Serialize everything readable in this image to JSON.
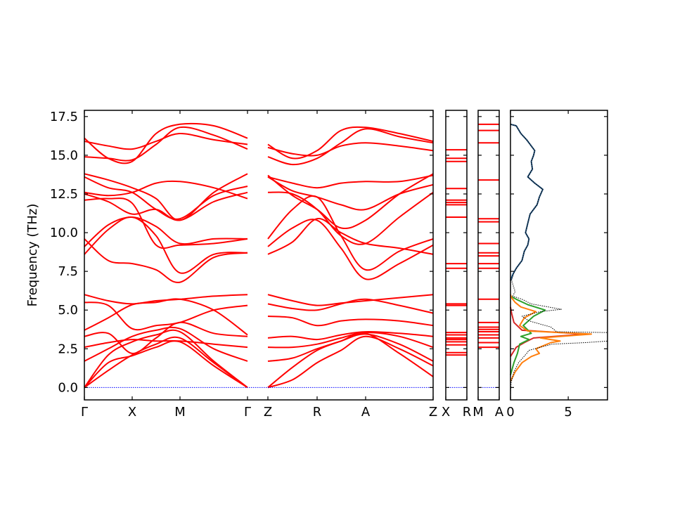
{
  "chart_data": {
    "type": "line",
    "title": "",
    "ylabel": "Frequency (THz)",
    "ylim": [
      -0.8,
      17.9
    ],
    "yticks": [
      "0.0",
      "2.5",
      "5.0",
      "7.5",
      "10.0",
      "12.5",
      "15.0",
      "17.5"
    ],
    "ytick_values": [
      0.0,
      2.5,
      5.0,
      7.5,
      10.0,
      12.5,
      15.0,
      17.5
    ],
    "colors": {
      "bands": "#ff0000",
      "zero_line": "#0000ff",
      "dos_total": "#000000",
      "dos_blue": "#1f4e79",
      "dos_orange": "#ff7f0e",
      "dos_green": "#2ca02c",
      "dos_red": "#d62728"
    },
    "band_path_labels": {
      "main": [
        "Γ",
        "X",
        "M",
        "Γ",
        "Z",
        "R",
        "A",
        "Z"
      ],
      "second": [
        "X",
        "R"
      ],
      "third": [
        "M",
        "A"
      ]
    },
    "segment2_levels": [
      15.35,
      14.8,
      14.6,
      12.85,
      12.1,
      11.95,
      11.8,
      11.0,
      8.0,
      7.7,
      5.4,
      5.3,
      3.55,
      3.4,
      3.2,
      3.1,
      2.95,
      2.75,
      2.25,
      2.1
    ],
    "segment3_levels": [
      17.0,
      16.6,
      15.8,
      13.4,
      10.9,
      10.7,
      9.3,
      8.7,
      8.5,
      8.0,
      7.7,
      5.7,
      4.2,
      3.9,
      3.75,
      3.6,
      3.4,
      3.2,
      2.9,
      2.6
    ],
    "dos": {
      "xticks": [
        "0",
        "5"
      ],
      "xtick_values": [
        0,
        5
      ],
      "xlim": [
        0,
        8.4
      ],
      "total": [
        [
          0.0,
          -0.8
        ],
        [
          0.05,
          0.3
        ],
        [
          0.3,
          1.0
        ],
        [
          0.7,
          1.6
        ],
        [
          1.4,
          2.2
        ],
        [
          1.6,
          2.4
        ],
        [
          2.6,
          2.6
        ],
        [
          3.6,
          2.8
        ],
        [
          6.5,
          2.9
        ],
        [
          8.4,
          3.0
        ],
        [
          8.4,
          3.55
        ],
        [
          4.0,
          3.6
        ],
        [
          3.5,
          3.9
        ],
        [
          1.6,
          4.3
        ],
        [
          1.0,
          4.6
        ],
        [
          2.6,
          4.9
        ],
        [
          4.4,
          5.05
        ],
        [
          1.8,
          5.4
        ],
        [
          1.0,
          5.7
        ],
        [
          0.2,
          5.9
        ],
        [
          0.4,
          6.2
        ],
        [
          0.1,
          6.9
        ],
        [
          0.3,
          7.4
        ],
        [
          0.6,
          7.8
        ],
        [
          1.0,
          8.2
        ],
        [
          1.2,
          8.8
        ],
        [
          1.5,
          9.2
        ],
        [
          1.6,
          9.6
        ],
        [
          1.3,
          10.0
        ],
        [
          1.5,
          10.6
        ],
        [
          1.7,
          11.2
        ],
        [
          2.3,
          11.8
        ],
        [
          2.5,
          12.3
        ],
        [
          2.8,
          12.8
        ],
        [
          2.1,
          13.2
        ],
        [
          1.5,
          13.6
        ],
        [
          1.9,
          14.1
        ],
        [
          1.8,
          14.6
        ],
        [
          2.0,
          15.0
        ],
        [
          2.1,
          15.3
        ],
        [
          1.8,
          15.6
        ],
        [
          1.4,
          16.0
        ],
        [
          0.9,
          16.4
        ],
        [
          0.5,
          16.9
        ],
        [
          0.0,
          17.0
        ]
      ],
      "blue": [
        [
          0.0,
          6.9
        ],
        [
          0.2,
          7.3
        ],
        [
          0.5,
          7.7
        ],
        [
          1.0,
          8.2
        ],
        [
          1.2,
          8.8
        ],
        [
          1.5,
          9.2
        ],
        [
          1.6,
          9.6
        ],
        [
          1.3,
          10.0
        ],
        [
          1.5,
          10.6
        ],
        [
          1.7,
          11.2
        ],
        [
          2.3,
          11.8
        ],
        [
          2.5,
          12.3
        ],
        [
          2.8,
          12.8
        ],
        [
          2.1,
          13.2
        ],
        [
          1.5,
          13.6
        ],
        [
          1.9,
          14.1
        ],
        [
          1.8,
          14.6
        ],
        [
          2.0,
          15.0
        ],
        [
          2.1,
          15.3
        ],
        [
          1.8,
          15.6
        ],
        [
          1.4,
          16.0
        ],
        [
          0.9,
          16.4
        ],
        [
          0.5,
          16.9
        ],
        [
          0.0,
          17.0
        ]
      ],
      "orange": [
        [
          0.0,
          0.4
        ],
        [
          0.4,
          1.0
        ],
        [
          1.0,
          1.6
        ],
        [
          1.8,
          2.0
        ],
        [
          2.5,
          2.2
        ],
        [
          2.2,
          2.5
        ],
        [
          3.5,
          2.9
        ],
        [
          4.3,
          3.0
        ],
        [
          2.6,
          3.2
        ],
        [
          7.0,
          3.45
        ],
        [
          1.5,
          3.65
        ],
        [
          0.8,
          4.0
        ],
        [
          1.2,
          4.5
        ],
        [
          2.2,
          4.9
        ],
        [
          0.9,
          5.2
        ],
        [
          0.4,
          5.5
        ],
        [
          0.1,
          5.8
        ],
        [
          0.0,
          6.0
        ]
      ],
      "green": [
        [
          0.0,
          0.8
        ],
        [
          0.3,
          1.6
        ],
        [
          0.6,
          2.2
        ],
        [
          0.8,
          2.8
        ],
        [
          1.6,
          3.1
        ],
        [
          0.9,
          3.3
        ],
        [
          1.8,
          3.5
        ],
        [
          1.1,
          4.0
        ],
        [
          2.0,
          4.6
        ],
        [
          3.0,
          5.0
        ],
        [
          1.5,
          5.35
        ],
        [
          0.5,
          5.7
        ],
        [
          0.0,
          5.9
        ]
      ],
      "red": [
        [
          0.0,
          2.0
        ],
        [
          0.5,
          2.6
        ],
        [
          1.2,
          2.9
        ],
        [
          2.0,
          3.2
        ],
        [
          6.5,
          3.45
        ],
        [
          1.0,
          3.7
        ],
        [
          0.3,
          4.2
        ],
        [
          0.1,
          4.8
        ],
        [
          0.0,
          5.2
        ]
      ]
    }
  }
}
